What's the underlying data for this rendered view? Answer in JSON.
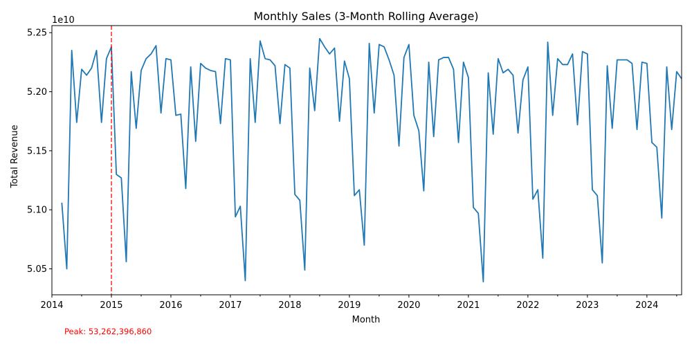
{
  "chart_data": {
    "type": "line",
    "title": "Monthly Sales (3-Month Rolling Average)",
    "xlabel": "Month",
    "ylabel": "Total Revenue",
    "y_multiplier_label": "1e10",
    "xlim": [
      "2014-01",
      "2024-08"
    ],
    "ylim": [
      50280000000,
      52560000000
    ],
    "grid": false,
    "x_ticks": [
      {
        "value": "2014-01",
        "label": "2014"
      },
      {
        "value": "2015-01",
        "label": "2015"
      },
      {
        "value": "2016-01",
        "label": "2016"
      },
      {
        "value": "2017-01",
        "label": "2017"
      },
      {
        "value": "2018-01",
        "label": "2018"
      },
      {
        "value": "2019-01",
        "label": "2019"
      },
      {
        "value": "2020-01",
        "label": "2020"
      },
      {
        "value": "2021-01",
        "label": "2021"
      },
      {
        "value": "2022-01",
        "label": "2022"
      },
      {
        "value": "2023-01",
        "label": "2023"
      },
      {
        "value": "2024-01",
        "label": "2024"
      }
    ],
    "y_ticks": [
      {
        "value": 50500000000,
        "label": "5.05"
      },
      {
        "value": 51000000000,
        "label": "5.10"
      },
      {
        "value": 51500000000,
        "label": "5.15"
      },
      {
        "value": 52000000000,
        "label": "5.20"
      },
      {
        "value": 52500000000,
        "label": "5.25"
      }
    ],
    "series": [
      {
        "color": "#1f77b4",
        "points": [
          [
            "2014-03",
            51060000000
          ],
          [
            "2014-04",
            50500000000
          ],
          [
            "2014-05",
            52350000000
          ],
          [
            "2014-06",
            51740000000
          ],
          [
            "2014-07",
            52190000000
          ],
          [
            "2014-08",
            52140000000
          ],
          [
            "2014-09",
            52200000000
          ],
          [
            "2014-10",
            52350000000
          ],
          [
            "2014-11",
            51740000000
          ],
          [
            "2014-12",
            52280000000
          ],
          [
            "2015-01",
            52380000000
          ],
          [
            "2015-02",
            51300000000
          ],
          [
            "2015-03",
            51270000000
          ],
          [
            "2015-04",
            50560000000
          ],
          [
            "2015-05",
            52170000000
          ],
          [
            "2015-06",
            51690000000
          ],
          [
            "2015-07",
            52180000000
          ],
          [
            "2015-08",
            52280000000
          ],
          [
            "2015-09",
            52320000000
          ],
          [
            "2015-10",
            52390000000
          ],
          [
            "2015-11",
            51820000000
          ],
          [
            "2015-12",
            52280000000
          ],
          [
            "2016-01",
            52270000000
          ],
          [
            "2016-02",
            51800000000
          ],
          [
            "2016-03",
            51810000000
          ],
          [
            "2016-04",
            51180000000
          ],
          [
            "2016-05",
            52210000000
          ],
          [
            "2016-06",
            51580000000
          ],
          [
            "2016-07",
            52240000000
          ],
          [
            "2016-08",
            52200000000
          ],
          [
            "2016-09",
            52180000000
          ],
          [
            "2016-10",
            52170000000
          ],
          [
            "2016-11",
            51730000000
          ],
          [
            "2016-12",
            52280000000
          ],
          [
            "2017-01",
            52270000000
          ],
          [
            "2017-02",
            50940000000
          ],
          [
            "2017-03",
            51030000000
          ],
          [
            "2017-04",
            50400000000
          ],
          [
            "2017-05",
            52280000000
          ],
          [
            "2017-06",
            51740000000
          ],
          [
            "2017-07",
            52430000000
          ],
          [
            "2017-08",
            52280000000
          ],
          [
            "2017-09",
            52270000000
          ],
          [
            "2017-10",
            52220000000
          ],
          [
            "2017-11",
            51730000000
          ],
          [
            "2017-12",
            52230000000
          ],
          [
            "2018-01",
            52200000000
          ],
          [
            "2018-02",
            51130000000
          ],
          [
            "2018-03",
            51080000000
          ],
          [
            "2018-04",
            50490000000
          ],
          [
            "2018-05",
            52200000000
          ],
          [
            "2018-06",
            51840000000
          ],
          [
            "2018-07",
            52450000000
          ],
          [
            "2018-08",
            52380000000
          ],
          [
            "2018-09",
            52320000000
          ],
          [
            "2018-10",
            52370000000
          ],
          [
            "2018-11",
            51750000000
          ],
          [
            "2018-12",
            52260000000
          ],
          [
            "2019-01",
            52110000000
          ],
          [
            "2019-02",
            51120000000
          ],
          [
            "2019-03",
            51170000000
          ],
          [
            "2019-04",
            50700000000
          ],
          [
            "2019-05",
            52410000000
          ],
          [
            "2019-06",
            51820000000
          ],
          [
            "2019-07",
            52400000000
          ],
          [
            "2019-08",
            52380000000
          ],
          [
            "2019-09",
            52270000000
          ],
          [
            "2019-10",
            52140000000
          ],
          [
            "2019-11",
            51540000000
          ],
          [
            "2019-12",
            52290000000
          ],
          [
            "2020-01",
            52400000000
          ],
          [
            "2020-02",
            51800000000
          ],
          [
            "2020-03",
            51670000000
          ],
          [
            "2020-04",
            51160000000
          ],
          [
            "2020-05",
            52250000000
          ],
          [
            "2020-06",
            51620000000
          ],
          [
            "2020-07",
            52270000000
          ],
          [
            "2020-08",
            52290000000
          ],
          [
            "2020-09",
            52290000000
          ],
          [
            "2020-10",
            52190000000
          ],
          [
            "2020-11",
            51570000000
          ],
          [
            "2020-12",
            52250000000
          ],
          [
            "2021-01",
            52120000000
          ],
          [
            "2021-02",
            51020000000
          ],
          [
            "2021-03",
            50970000000
          ],
          [
            "2021-04",
            50390000000
          ],
          [
            "2021-05",
            52160000000
          ],
          [
            "2021-06",
            51640000000
          ],
          [
            "2021-07",
            52280000000
          ],
          [
            "2021-08",
            52160000000
          ],
          [
            "2021-09",
            52190000000
          ],
          [
            "2021-10",
            52140000000
          ],
          [
            "2021-11",
            51650000000
          ],
          [
            "2021-12",
            52100000000
          ],
          [
            "2022-01",
            52210000000
          ],
          [
            "2022-02",
            51090000000
          ],
          [
            "2022-03",
            51170000000
          ],
          [
            "2022-04",
            50590000000
          ],
          [
            "2022-05",
            52420000000
          ],
          [
            "2022-06",
            51800000000
          ],
          [
            "2022-07",
            52280000000
          ],
          [
            "2022-08",
            52230000000
          ],
          [
            "2022-09",
            52230000000
          ],
          [
            "2022-10",
            52320000000
          ],
          [
            "2022-11",
            51720000000
          ],
          [
            "2022-12",
            52340000000
          ],
          [
            "2023-01",
            52320000000
          ],
          [
            "2023-02",
            51170000000
          ],
          [
            "2023-03",
            51120000000
          ],
          [
            "2023-04",
            50550000000
          ],
          [
            "2023-05",
            52220000000
          ],
          [
            "2023-06",
            51690000000
          ],
          [
            "2023-07",
            52270000000
          ],
          [
            "2023-08",
            52270000000
          ],
          [
            "2023-09",
            52270000000
          ],
          [
            "2023-10",
            52240000000
          ],
          [
            "2023-11",
            51680000000
          ],
          [
            "2023-12",
            52250000000
          ],
          [
            "2024-01",
            52240000000
          ],
          [
            "2024-02",
            51570000000
          ],
          [
            "2024-03",
            51530000000
          ],
          [
            "2024-04",
            50930000000
          ],
          [
            "2024-05",
            52210000000
          ],
          [
            "2024-06",
            51680000000
          ],
          [
            "2024-07",
            52170000000
          ],
          [
            "2024-08",
            52110000000
          ]
        ]
      }
    ],
    "peak_line": {
      "x": "2015-01",
      "color": "#ff0000",
      "style": "dashed"
    },
    "peak_label": "Peak: 53,262,396,860",
    "peak_label_color": "#ff0000"
  }
}
